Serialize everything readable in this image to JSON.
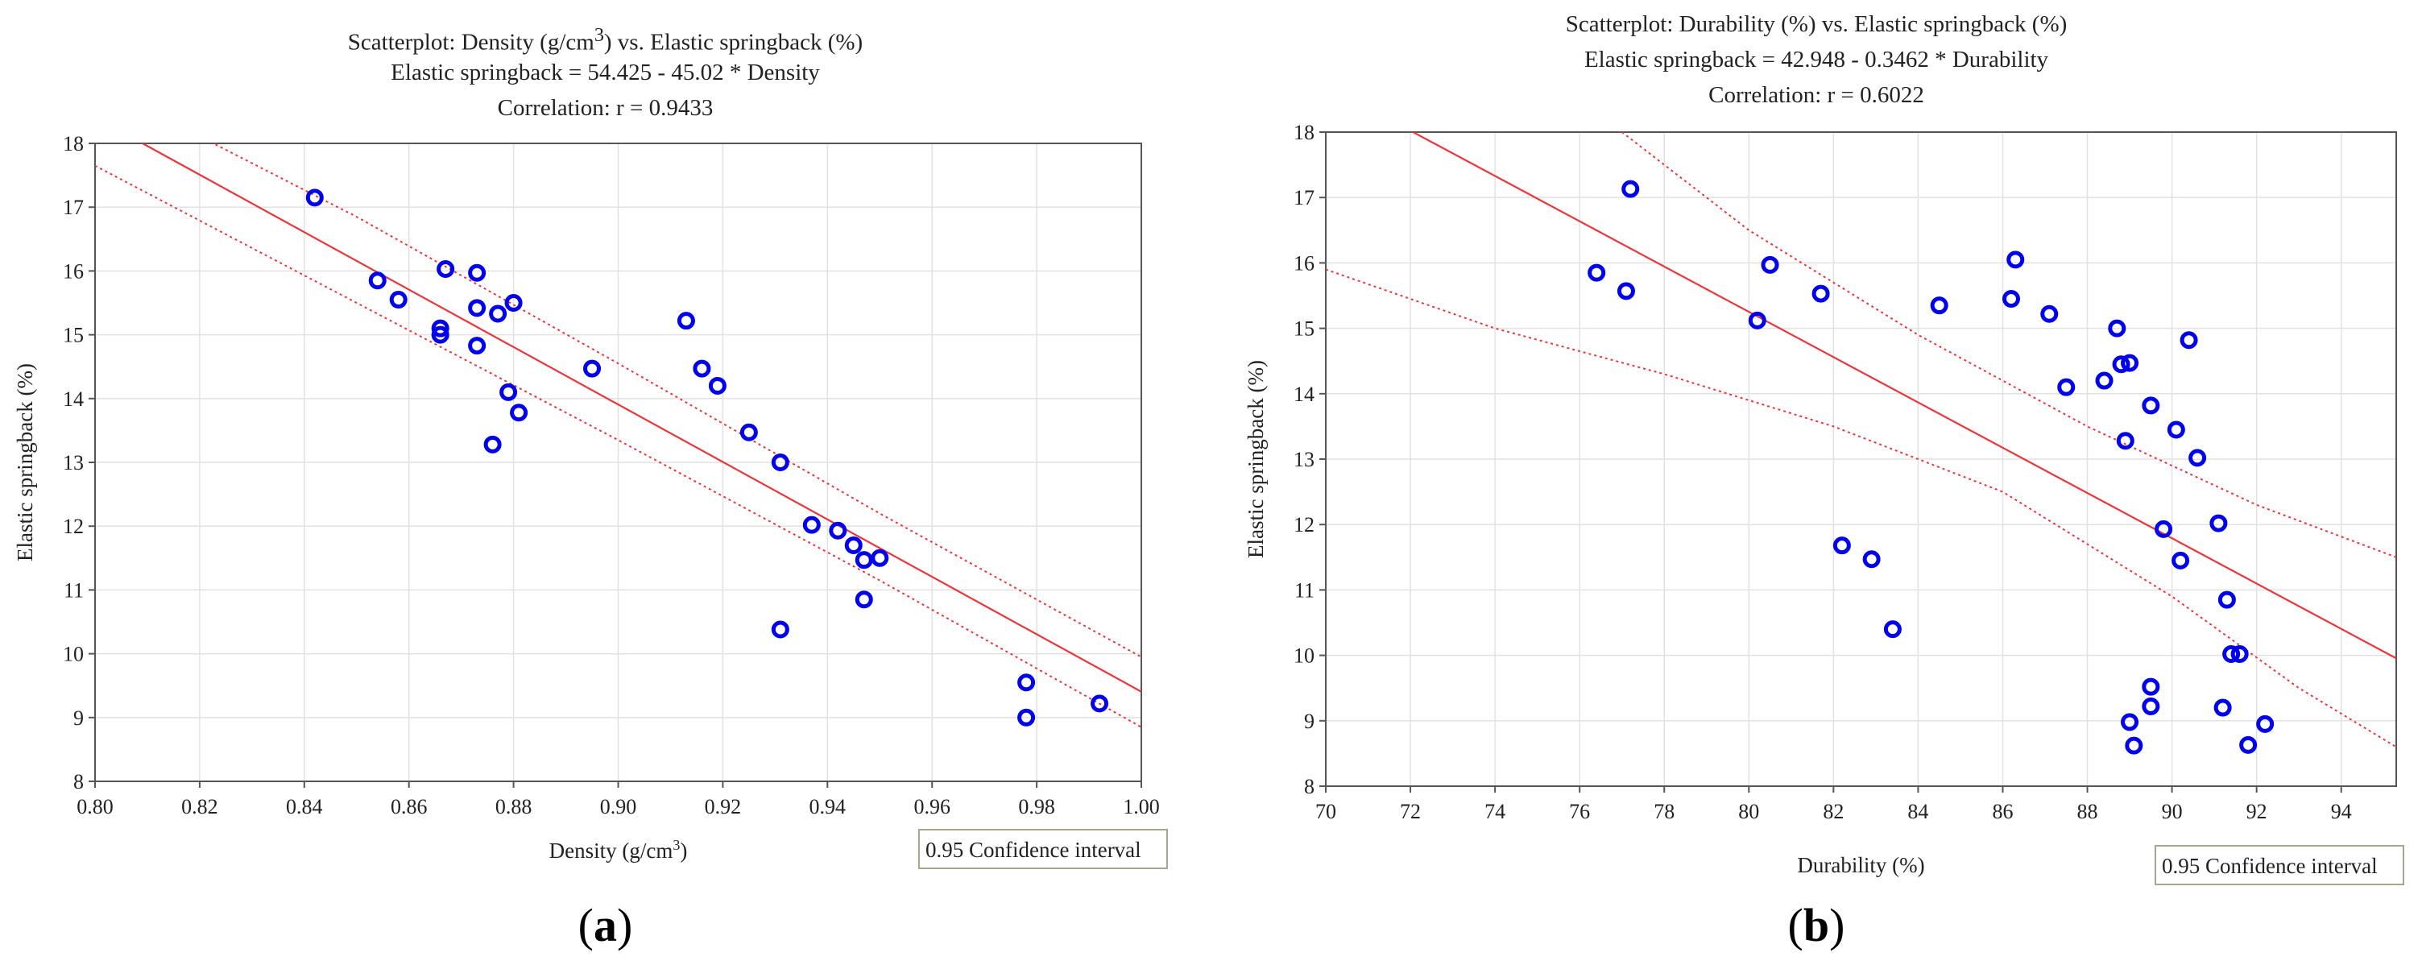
{
  "chart_data": [
    {
      "type": "scatter",
      "panel_label": "a",
      "title_prefix": "Scatterplot: Density (g/cm",
      "title_sup": "3",
      "title_suffix": ")   vs. Elastic springback (%)",
      "equation": "Elastic springback  = 54.425 - 45.02  * Density",
      "correlation": "Correlation: r =   0.9433",
      "xlabel_prefix": "Density (g/cm",
      "xlabel_sup": "3",
      "xlabel_suffix": ")",
      "ylabel": "Elastic springback (%)",
      "legend": "0.95 Confidence interval",
      "xlim": [
        0.8,
        1.0
      ],
      "ylim": [
        8,
        18
      ],
      "xticks": [
        0.8,
        0.82,
        0.84,
        0.86,
        0.88,
        0.9,
        0.92,
        0.94,
        0.96,
        0.98,
        1.0
      ],
      "xtick_labels": [
        "0.80",
        "0.82",
        "0.84",
        "0.86",
        "0.88",
        "0.90",
        "0.92",
        "0.94",
        "0.96",
        "0.98",
        "1.00"
      ],
      "yticks": [
        8,
        9,
        10,
        11,
        12,
        13,
        14,
        15,
        16,
        17,
        18
      ],
      "ytick_labels": [
        "8",
        "9",
        "10",
        "11",
        "12",
        "13",
        "14",
        "15",
        "16",
        "17",
        "18"
      ],
      "fit": {
        "intercept": 54.425,
        "slope": -45.02
      },
      "ci_upper": [
        [
          0.8,
          18.95
        ],
        [
          0.85,
          16.85
        ],
        [
          0.9,
          14.55
        ],
        [
          0.95,
          12.2
        ],
        [
          1.0,
          9.95
        ]
      ],
      "ci_lower": [
        [
          0.8,
          17.65
        ],
        [
          0.85,
          15.5
        ],
        [
          0.9,
          13.35
        ],
        [
          0.95,
          11.15
        ],
        [
          1.0,
          8.85
        ]
      ],
      "points": [
        [
          0.842,
          17.15
        ],
        [
          0.854,
          15.85
        ],
        [
          0.858,
          15.55
        ],
        [
          0.866,
          15.1
        ],
        [
          0.866,
          15.0
        ],
        [
          0.867,
          16.03
        ],
        [
          0.873,
          15.97
        ],
        [
          0.873,
          15.42
        ],
        [
          0.873,
          14.83
        ],
        [
          0.876,
          13.28
        ],
        [
          0.877,
          15.33
        ],
        [
          0.879,
          14.1
        ],
        [
          0.88,
          15.5
        ],
        [
          0.881,
          13.78
        ],
        [
          0.895,
          14.47
        ],
        [
          0.913,
          15.22
        ],
        [
          0.916,
          14.47
        ],
        [
          0.919,
          14.2
        ],
        [
          0.925,
          13.47
        ],
        [
          0.931,
          13.0
        ],
        [
          0.931,
          10.38
        ],
        [
          0.937,
          12.02
        ],
        [
          0.942,
          11.93
        ],
        [
          0.945,
          11.7
        ],
        [
          0.947,
          11.47
        ],
        [
          0.947,
          10.85
        ],
        [
          0.95,
          11.5
        ],
        [
          0.978,
          9.55
        ],
        [
          0.978,
          9.0
        ],
        [
          0.992,
          9.22
        ]
      ]
    },
    {
      "type": "scatter",
      "panel_label": "b",
      "title_prefix": "Scatterplot: Durability (%) vs. Elastic springback (%)",
      "title_sup": "",
      "title_suffix": "",
      "equation": "Elastic springback  = 42.948 - 0.3462  * Durability",
      "correlation": "Correlation: r =   0.6022",
      "xlabel_prefix": "Durability (%)",
      "xlabel_sup": "",
      "xlabel_suffix": "",
      "ylabel": "Elastic springback (%)",
      "legend": "0.95 Confidence interval",
      "xlim": [
        70,
        95.3
      ],
      "ylim": [
        8,
        18
      ],
      "xticks": [
        70,
        72,
        74,
        76,
        78,
        80,
        82,
        84,
        86,
        88,
        90,
        92,
        94
      ],
      "xtick_labels": [
        "70",
        "72",
        "74",
        "76",
        "78",
        "80",
        "82",
        "84",
        "86",
        "88",
        "90",
        "92",
        "94"
      ],
      "yticks": [
        8,
        9,
        10,
        11,
        12,
        13,
        14,
        15,
        16,
        17,
        18
      ],
      "ytick_labels": [
        "8",
        "9",
        "10",
        "11",
        "12",
        "13",
        "14",
        "15",
        "16",
        "17",
        "18"
      ],
      "fit": {
        "intercept": 42.948,
        "slope": -0.3462
      },
      "ci_upper": [
        [
          77.0,
          18.0
        ],
        [
          80.0,
          16.5
        ],
        [
          84.0,
          14.9
        ],
        [
          88.0,
          13.5
        ],
        [
          92.0,
          12.3
        ],
        [
          95.3,
          11.5
        ]
      ],
      "ci_lower": [
        [
          70.0,
          15.9
        ],
        [
          74.0,
          15.0
        ],
        [
          78.0,
          14.3
        ],
        [
          82.0,
          13.5
        ],
        [
          86.0,
          12.5
        ],
        [
          90.0,
          10.9
        ],
        [
          93.0,
          9.5
        ],
        [
          95.3,
          8.6
        ]
      ],
      "points": [
        [
          76.4,
          15.85
        ],
        [
          77.1,
          15.57
        ],
        [
          77.2,
          17.13
        ],
        [
          80.2,
          15.12
        ],
        [
          80.5,
          15.97
        ],
        [
          81.7,
          15.53
        ],
        [
          82.2,
          11.68
        ],
        [
          82.9,
          11.47
        ],
        [
          83.4,
          10.4
        ],
        [
          84.5,
          15.35
        ],
        [
          86.2,
          15.45
        ],
        [
          86.3,
          16.05
        ],
        [
          87.1,
          15.22
        ],
        [
          87.5,
          14.1
        ],
        [
          88.4,
          14.2
        ],
        [
          88.7,
          15.0
        ],
        [
          88.8,
          14.45
        ],
        [
          88.9,
          13.28
        ],
        [
          89.0,
          14.47
        ],
        [
          89.0,
          8.98
        ],
        [
          89.1,
          8.62
        ],
        [
          89.5,
          13.82
        ],
        [
          89.5,
          9.52
        ],
        [
          89.5,
          9.22
        ],
        [
          89.8,
          11.93
        ],
        [
          90.1,
          13.45
        ],
        [
          90.2,
          11.45
        ],
        [
          90.4,
          14.82
        ],
        [
          90.6,
          13.02
        ],
        [
          91.1,
          12.02
        ],
        [
          91.2,
          9.2
        ],
        [
          91.3,
          10.85
        ],
        [
          91.4,
          10.02
        ],
        [
          91.6,
          10.02
        ],
        [
          91.8,
          8.63
        ],
        [
          92.2,
          8.95
        ]
      ]
    }
  ]
}
